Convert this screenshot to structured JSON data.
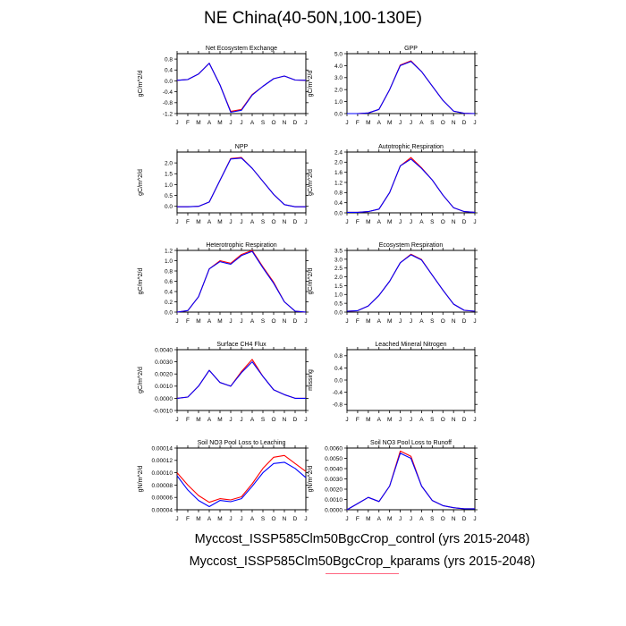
{
  "figure": {
    "title": "NE China(40-50N,100-130E)",
    "legend": [
      {
        "label": "Myccost_ISSP585Clm50BgcCrop_control (yrs 2015-2048)",
        "color": "#0000ff"
      },
      {
        "label": "Myccost_ISSP585Clm50BgcCrop_kparams (yrs 2015-2048)",
        "color": "#ff0000"
      }
    ]
  },
  "chart_data": [
    {
      "type": "line",
      "title": "Net Ecosystem Exchange",
      "ylabel": "gC/m^2/d",
      "categories": [
        "J",
        "F",
        "M",
        "A",
        "M",
        "J",
        "J",
        "A",
        "S",
        "O",
        "N",
        "D",
        "J"
      ],
      "ylim": [
        -1.2,
        1.0
      ],
      "yticks": [
        "0.8",
        "0.4",
        "0.0",
        "-0.4",
        "-0.8",
        "-1.2"
      ],
      "series": [
        {
          "color": "#ff0000",
          "values": [
            0.02,
            0.05,
            0.25,
            0.65,
            -0.15,
            -1.12,
            -1.05,
            -0.5,
            -0.2,
            0.08,
            0.18,
            0.03,
            0.02
          ]
        },
        {
          "color": "#0000ff",
          "values": [
            0.02,
            0.05,
            0.25,
            0.65,
            -0.15,
            -1.15,
            -1.08,
            -0.52,
            -0.2,
            0.08,
            0.18,
            0.03,
            0.02
          ]
        }
      ]
    },
    {
      "type": "line",
      "title": "GPP",
      "ylabel": "gC/m^2/d",
      "categories": [
        "J",
        "F",
        "M",
        "A",
        "M",
        "J",
        "J",
        "A",
        "S",
        "O",
        "N",
        "D",
        "J"
      ],
      "ylim": [
        0.0,
        5.0
      ],
      "yticks": [
        "5.0",
        "4.0",
        "3.0",
        "2.0",
        "1.0",
        "0.0"
      ],
      "series": [
        {
          "color": "#ff0000",
          "values": [
            0.0,
            0.0,
            0.05,
            0.35,
            2.0,
            4.05,
            4.4,
            3.5,
            2.3,
            1.1,
            0.2,
            0.02,
            0.0
          ]
        },
        {
          "color": "#0000ff",
          "values": [
            0.0,
            0.0,
            0.05,
            0.35,
            2.0,
            4.0,
            4.35,
            3.5,
            2.3,
            1.1,
            0.2,
            0.02,
            0.0
          ]
        }
      ]
    },
    {
      "type": "line",
      "title": "NPP",
      "ylabel": "gC/m^2/d",
      "categories": [
        "J",
        "F",
        "M",
        "A",
        "M",
        "J",
        "J",
        "A",
        "S",
        "O",
        "N",
        "D",
        "J"
      ],
      "ylim": [
        -0.3,
        2.5
      ],
      "yticks": [
        "2.0",
        "1.5",
        "1.0",
        "0.5",
        "0.0"
      ],
      "series": [
        {
          "color": "#ff0000",
          "values": [
            -0.02,
            -0.02,
            0.0,
            0.2,
            1.2,
            2.2,
            2.25,
            1.75,
            1.15,
            0.55,
            0.08,
            -0.02,
            -0.02
          ]
        },
        {
          "color": "#0000ff",
          "values": [
            -0.02,
            -0.02,
            0.0,
            0.2,
            1.2,
            2.18,
            2.22,
            1.75,
            1.15,
            0.55,
            0.08,
            -0.02,
            -0.02
          ]
        }
      ]
    },
    {
      "type": "line",
      "title": "Autotrophic Respiration",
      "ylabel": "gC/m^2/d",
      "categories": [
        "J",
        "F",
        "M",
        "A",
        "M",
        "J",
        "J",
        "A",
        "S",
        "O",
        "N",
        "D",
        "J"
      ],
      "ylim": [
        0.0,
        2.4
      ],
      "yticks": [
        "2.4",
        "2.0",
        "1.6",
        "1.2",
        "0.8",
        "0.4",
        "0.0"
      ],
      "series": [
        {
          "color": "#ff0000",
          "values": [
            0.02,
            0.02,
            0.05,
            0.15,
            0.8,
            1.85,
            2.18,
            1.78,
            1.3,
            0.7,
            0.2,
            0.05,
            0.02
          ]
        },
        {
          "color": "#0000ff",
          "values": [
            0.02,
            0.02,
            0.05,
            0.15,
            0.8,
            1.85,
            2.12,
            1.75,
            1.3,
            0.7,
            0.2,
            0.05,
            0.02
          ]
        }
      ]
    },
    {
      "type": "line",
      "title": "Heterotrophic Respiration",
      "ylabel": "gC/m^2/d",
      "categories": [
        "J",
        "F",
        "M",
        "A",
        "M",
        "J",
        "J",
        "A",
        "S",
        "O",
        "N",
        "D",
        "J"
      ],
      "ylim": [
        0.0,
        1.2
      ],
      "yticks": [
        "1.2",
        "1.0",
        "0.8",
        "0.6",
        "0.4",
        "0.2",
        "0.0"
      ],
      "series": [
        {
          "color": "#ff0000",
          "values": [
            0.0,
            0.03,
            0.3,
            0.84,
            1.0,
            0.95,
            1.12,
            1.2,
            0.88,
            0.58,
            0.2,
            0.02,
            0.0
          ]
        },
        {
          "color": "#0000ff",
          "values": [
            0.0,
            0.03,
            0.3,
            0.84,
            0.98,
            0.93,
            1.1,
            1.18,
            0.86,
            0.56,
            0.2,
            0.02,
            0.0
          ]
        }
      ]
    },
    {
      "type": "line",
      "title": "Ecosystem Respiration",
      "ylabel": "gC/m^2/d",
      "categories": [
        "J",
        "F",
        "M",
        "A",
        "M",
        "J",
        "J",
        "A",
        "S",
        "O",
        "N",
        "D",
        "J"
      ],
      "ylim": [
        0.0,
        3.5
      ],
      "yticks": [
        "3.5",
        "3.0",
        "2.5",
        "2.0",
        "1.5",
        "1.0",
        "0.5",
        "0.0"
      ],
      "series": [
        {
          "color": "#ff0000",
          "values": [
            0.05,
            0.08,
            0.35,
            0.95,
            1.75,
            2.8,
            3.28,
            2.98,
            2.1,
            1.25,
            0.45,
            0.1,
            0.05
          ]
        },
        {
          "color": "#0000ff",
          "values": [
            0.05,
            0.08,
            0.35,
            0.95,
            1.75,
            2.8,
            3.25,
            2.95,
            2.1,
            1.25,
            0.45,
            0.1,
            0.05
          ]
        }
      ]
    },
    {
      "type": "line",
      "title": "Surface CH4 Flux",
      "ylabel": "gC/m^2/d",
      "categories": [
        "J",
        "F",
        "M",
        "A",
        "M",
        "J",
        "J",
        "A",
        "S",
        "O",
        "N",
        "D",
        "J"
      ],
      "ylim": [
        -0.001,
        0.004
      ],
      "yticks": [
        "0.0040",
        "0.0030",
        "0.0020",
        "0.0010",
        "0.0000",
        "-0.0010"
      ],
      "series": [
        {
          "color": "#ff0000",
          "values": [
            0.0,
            0.0001,
            0.001,
            0.0023,
            0.0013,
            0.001,
            0.0022,
            0.0032,
            0.0018,
            0.0007,
            0.0003,
            0.0,
            0.0
          ]
        },
        {
          "color": "#0000ff",
          "values": [
            0.0,
            0.0001,
            0.001,
            0.0023,
            0.0013,
            0.001,
            0.0021,
            0.003,
            0.0018,
            0.0007,
            0.0003,
            0.0,
            0.0
          ]
        }
      ]
    },
    {
      "type": "line",
      "title": "Leached Mineral Nitrogen",
      "ylabel": "missing",
      "categories": [
        "J",
        "F",
        "M",
        "A",
        "M",
        "J",
        "J",
        "A",
        "S",
        "O",
        "N",
        "D",
        "J"
      ],
      "ylim": [
        -1.0,
        1.0
      ],
      "yticks": [
        "0.8",
        "0.4",
        "0.0",
        "-0.4",
        "-0.8"
      ],
      "series": []
    },
    {
      "type": "line",
      "title": "Soil NO3 Pool Loss to Leaching",
      "ylabel": "gN/m^2/d",
      "categories": [
        "J",
        "F",
        "M",
        "A",
        "M",
        "J",
        "J",
        "A",
        "S",
        "O",
        "N",
        "D",
        "J"
      ],
      "ylim": [
        4e-05,
        0.00014
      ],
      "yticks": [
        "0.00014",
        "0.00012",
        "0.00010",
        "0.00008",
        "0.00006",
        "0.00004"
      ],
      "series": [
        {
          "color": "#ff0000",
          "values": [
            0.0001,
            8e-05,
            6.3e-05,
            5.2e-05,
            5.8e-05,
            5.6e-05,
            6.1e-05,
            8.2e-05,
            0.000107,
            0.000125,
            0.000128,
            0.000115,
            0.000102
          ]
        },
        {
          "color": "#0000ff",
          "values": [
            9.5e-05,
            7.2e-05,
            5.5e-05,
            4.5e-05,
            5.5e-05,
            5.3e-05,
            5.8e-05,
            7.8e-05,
            0.0001,
            0.000115,
            0.000117,
            0.000107,
            9.2e-05
          ]
        }
      ]
    },
    {
      "type": "line",
      "title": "Soil NO3 Pool Loss to Runoff",
      "ylabel": "gN/m^2/d",
      "categories": [
        "J",
        "F",
        "M",
        "A",
        "M",
        "J",
        "J",
        "A",
        "S",
        "O",
        "N",
        "D",
        "J"
      ],
      "ylim": [
        0.0,
        0.006
      ],
      "yticks": [
        "0.0060",
        "0.0050",
        "0.0040",
        "0.0030",
        "0.0020",
        "0.0010",
        "0.0000"
      ],
      "series": [
        {
          "color": "#ff0000",
          "values": [
            0.0,
            0.0006,
            0.0012,
            0.0008,
            0.0023,
            0.0057,
            0.0052,
            0.0023,
            0.0009,
            0.0004,
            0.0002,
            0.0001,
            0.0001
          ]
        },
        {
          "color": "#0000ff",
          "values": [
            0.0,
            0.0006,
            0.0012,
            0.0008,
            0.0023,
            0.0055,
            0.005,
            0.0023,
            0.0009,
            0.0004,
            0.0002,
            0.0001,
            0.0001
          ]
        }
      ]
    }
  ]
}
